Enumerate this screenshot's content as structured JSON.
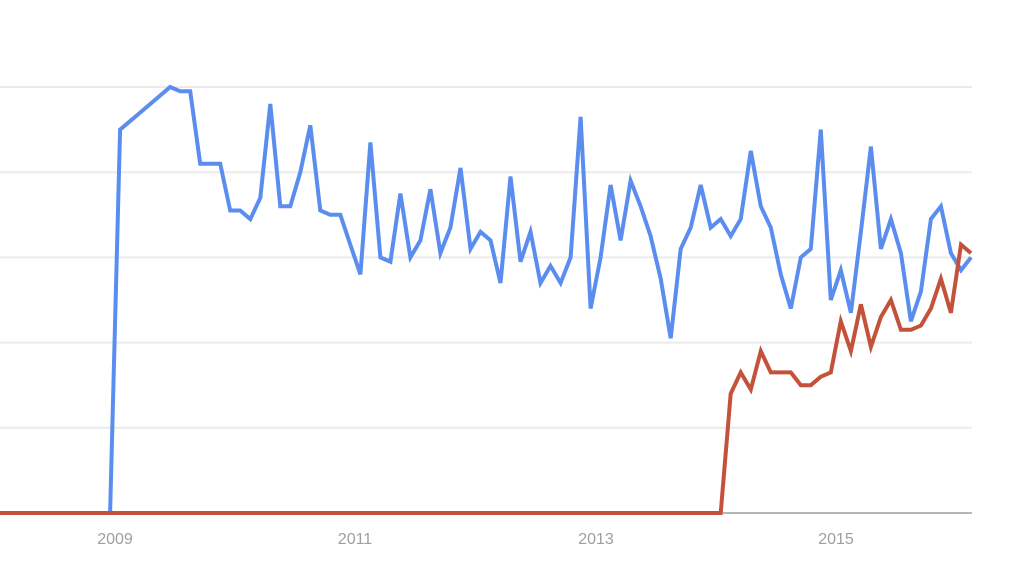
{
  "chart_data": {
    "type": "line",
    "title": "",
    "xlabel": "",
    "ylabel": "",
    "x_start": "2008-01",
    "x_end": "2016-02",
    "x_interval": "month",
    "x_ticks": [
      "2009",
      "2011",
      "2013",
      "2015"
    ],
    "ylim": [
      0,
      100
    ],
    "y_gridlines": [
      20,
      40,
      60,
      80,
      100
    ],
    "y_tick_labels_shown": false,
    "grid": true,
    "legend": "none",
    "series": [
      {
        "color": "#5b8def",
        "values": [
          0,
          0,
          0,
          0,
          0,
          0,
          0,
          0,
          0,
          0,
          0,
          0,
          90,
          92,
          94,
          96,
          98,
          100,
          99,
          99,
          82,
          82,
          82,
          71,
          71,
          69,
          74,
          96,
          72,
          72,
          80,
          91,
          71,
          70,
          70,
          63,
          56,
          87,
          60,
          59,
          75,
          60,
          64,
          76,
          61,
          67,
          81,
          62,
          66,
          64,
          54,
          79,
          59,
          66,
          54,
          58,
          54,
          60,
          93,
          48,
          60,
          77,
          64,
          78,
          72,
          65,
          55,
          41,
          62,
          67,
          77,
          67,
          69,
          65,
          69,
          85,
          72,
          67,
          56,
          48,
          60,
          62,
          90,
          50,
          57,
          47,
          66,
          86,
          62,
          69,
          61,
          45,
          52,
          69,
          72,
          61,
          57,
          60
        ]
      },
      {
        "color": "#c4523b",
        "values": [
          0,
          0,
          0,
          0,
          0,
          0,
          0,
          0,
          0,
          0,
          0,
          0,
          0,
          0,
          0,
          0,
          0,
          0,
          0,
          0,
          0,
          0,
          0,
          0,
          0,
          0,
          0,
          0,
          0,
          0,
          0,
          0,
          0,
          0,
          0,
          0,
          0,
          0,
          0,
          0,
          0,
          0,
          0,
          0,
          0,
          0,
          0,
          0,
          0,
          0,
          0,
          0,
          0,
          0,
          0,
          0,
          0,
          0,
          0,
          0,
          0,
          0,
          0,
          0,
          0,
          0,
          0,
          0,
          0,
          0,
          0,
          0,
          0,
          28,
          33,
          29,
          38,
          33,
          33,
          33,
          30,
          30,
          32,
          33,
          45,
          38,
          49,
          39,
          46,
          50,
          43,
          43,
          44,
          48,
          55,
          47,
          63,
          61
        ]
      }
    ]
  }
}
